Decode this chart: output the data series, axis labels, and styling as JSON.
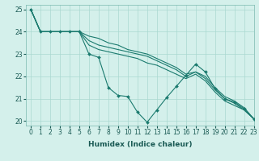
{
  "xlabel": "Humidex (Indice chaleur)",
  "bg_color": "#d4f0eb",
  "line_color": "#1a7a6e",
  "grid_color": "#aad8d0",
  "xlim": [
    -0.5,
    23
  ],
  "ylim": [
    19.8,
    25.2
  ],
  "yticks": [
    20,
    21,
    22,
    23,
    24,
    25
  ],
  "xticks": [
    0,
    1,
    2,
    3,
    4,
    5,
    6,
    7,
    8,
    9,
    10,
    11,
    12,
    13,
    14,
    15,
    16,
    17,
    18,
    19,
    20,
    21,
    22,
    23
  ],
  "series_smooth": [
    {
      "x": [
        0,
        1,
        2,
        3,
        4,
        5,
        6,
        7,
        8,
        9,
        10,
        11,
        12,
        13,
        14,
        15,
        16,
        17,
        18,
        19,
        20,
        21,
        22,
        23
      ],
      "y": [
        25,
        24,
        24,
        24,
        24,
        24,
        23.8,
        23.7,
        23.5,
        23.4,
        23.2,
        23.1,
        23.0,
        22.8,
        22.6,
        22.4,
        22.1,
        22.2,
        22.0,
        21.5,
        21.1,
        20.9,
        20.6,
        20.1
      ]
    },
    {
      "x": [
        0,
        1,
        2,
        3,
        4,
        5,
        6,
        7,
        8,
        9,
        10,
        11,
        12,
        13,
        14,
        15,
        16,
        17,
        18,
        19,
        20,
        21,
        22,
        23
      ],
      "y": [
        25,
        24,
        24,
        24,
        24,
        24,
        23.6,
        23.4,
        23.3,
        23.2,
        23.1,
        23.0,
        22.9,
        22.7,
        22.5,
        22.3,
        22.0,
        22.2,
        21.9,
        21.4,
        21.0,
        20.8,
        20.5,
        20.1
      ]
    },
    {
      "x": [
        0,
        1,
        2,
        3,
        4,
        5,
        6,
        7,
        8,
        9,
        10,
        11,
        12,
        13,
        14,
        15,
        16,
        17,
        18,
        19,
        20,
        21,
        22,
        23
      ],
      "y": [
        25,
        24,
        24,
        24,
        24,
        24,
        23.4,
        23.2,
        23.1,
        23.0,
        22.9,
        22.8,
        22.6,
        22.5,
        22.3,
        22.1,
        21.9,
        22.1,
        21.8,
        21.3,
        20.9,
        20.7,
        20.5,
        20.1
      ]
    }
  ],
  "series_jagged": [
    {
      "x": [
        0,
        1,
        2,
        3,
        4,
        5,
        6,
        7,
        8,
        9,
        10,
        11,
        12,
        13,
        14,
        15,
        16,
        17,
        18,
        19,
        20,
        21,
        22,
        23
      ],
      "y": [
        25,
        24,
        24,
        24,
        24,
        24,
        23.0,
        22.85,
        21.5,
        21.15,
        21.1,
        20.4,
        19.95,
        20.5,
        21.05,
        21.55,
        22.05,
        22.55,
        22.2,
        21.45,
        21.0,
        20.85,
        20.55,
        20.1
      ]
    }
  ]
}
